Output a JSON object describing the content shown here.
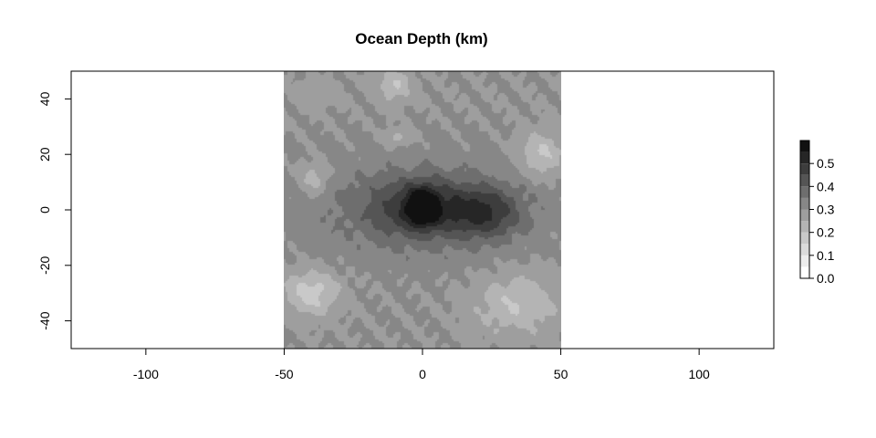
{
  "chart_data": {
    "type": "heatmap",
    "title": "Ocean Depth (km)",
    "xlabel": "",
    "ylabel": "",
    "xlim": [
      -127,
      127
    ],
    "ylim": [
      -50,
      50
    ],
    "data_extent": {
      "x": [
        -50,
        50
      ],
      "y": [
        -50,
        50
      ]
    },
    "x_ticks": [
      -100,
      -50,
      0,
      50,
      100
    ],
    "x_tick_labels": [
      "-100",
      "-50",
      "0",
      "50",
      "100"
    ],
    "y_ticks": [
      -40,
      -20,
      0,
      20,
      40
    ],
    "y_tick_labels": [
      "-40",
      "-20",
      "0",
      "20",
      "40"
    ],
    "grid": false,
    "legend_position": "right",
    "color_levels": [
      0.0,
      0.05,
      0.1,
      0.15,
      0.2,
      0.25,
      0.3,
      0.35,
      0.4,
      0.45,
      0.5,
      0.55,
      0.6
    ],
    "colorbar_ticks": [
      0.0,
      0.1,
      0.2,
      0.3,
      0.4,
      0.5
    ],
    "colorbar_tick_labels": [
      "0.0",
      "0.1",
      "0.2",
      "0.3",
      "0.4",
      "0.5"
    ],
    "colors": [
      "#ffffff",
      "#ededed",
      "#dbdbdb",
      "#c9c9c9",
      "#b4b4b4",
      "#9e9e9e",
      "#878787",
      "#6e6e6e",
      "#555555",
      "#3d3d3d",
      "#262626",
      "#111111"
    ],
    "features": [
      {
        "kind": "deep",
        "center": [
          0,
          1
        ],
        "radius": [
          5,
          6
        ],
        "depth": 0.25
      },
      {
        "kind": "deep",
        "center": [
          0,
          1
        ],
        "radius": [
          17,
          10
        ],
        "depth": 0.12
      },
      {
        "kind": "deep",
        "center": [
          23,
          -1
        ],
        "radius": [
          12,
          9
        ],
        "depth": 0.14
      },
      {
        "kind": "deep",
        "center": [
          0,
          0
        ],
        "radius": [
          37,
          16
        ],
        "depth": 0.1
      },
      {
        "kind": "shallow",
        "center": [
          -40,
          -30
        ],
        "radius": [
          10,
          8
        ],
        "depth": -0.13
      },
      {
        "kind": "shallow",
        "center": [
          34,
          -34
        ],
        "radius": [
          15,
          11
        ],
        "depth": -0.1
      },
      {
        "kind": "shallow",
        "center": [
          43,
          20
        ],
        "radius": [
          8,
          8
        ],
        "depth": -0.11
      },
      {
        "kind": "shallow",
        "center": [
          -10,
          45
        ],
        "radius": [
          6,
          6
        ],
        "depth": -0.1
      },
      {
        "kind": "shallow",
        "center": [
          -39,
          11
        ],
        "radius": [
          5,
          6
        ],
        "depth": -0.09
      },
      {
        "kind": "shallow",
        "center": [
          -9,
          26
        ],
        "radius": [
          5,
          3
        ],
        "depth": -0.07
      },
      {
        "kind": "shallow",
        "center": [
          -38,
          42
        ],
        "radius": [
          7,
          5
        ],
        "depth": -0.04
      }
    ],
    "base_depth": 0.3
  }
}
